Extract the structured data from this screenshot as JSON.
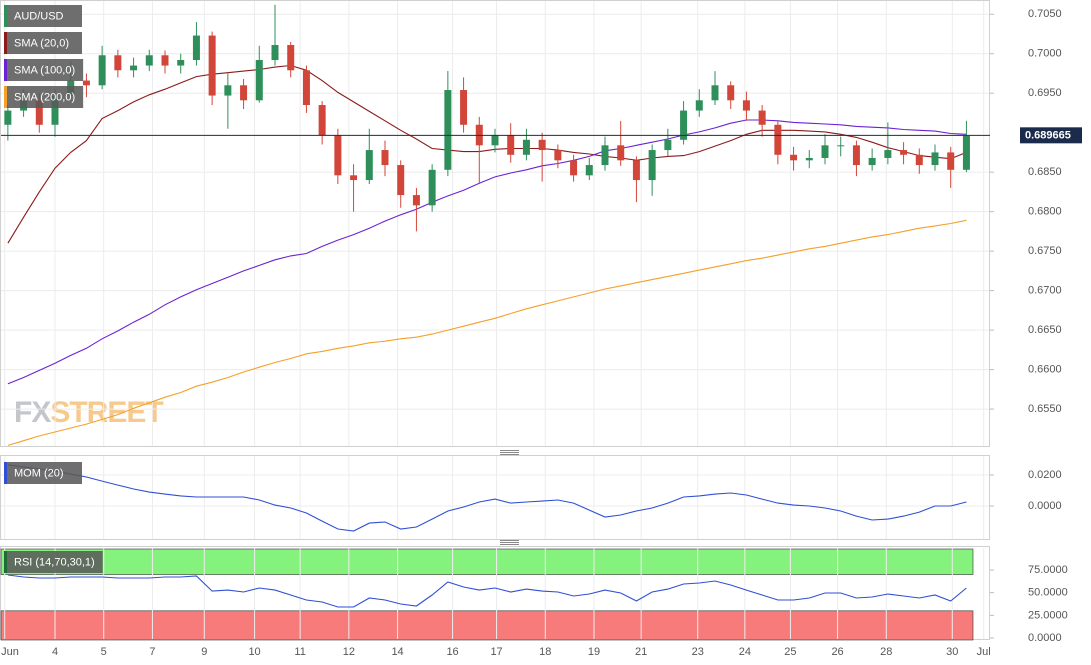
{
  "chart_data": [
    {
      "type": "candlestick",
      "name": "AUD/USD",
      "up_color": "#2f8f5b",
      "down_color": "#d2463a",
      "xlim": [
        -0.5,
        62.5
      ],
      "ylim": [
        0.6502,
        0.7068
      ],
      "yticks": [
        {
          "value": 0.705,
          "label": "0.7050"
        },
        {
          "value": 0.7,
          "label": "0.7000"
        },
        {
          "value": 0.695,
          "label": "0.6950"
        },
        {
          "value": 0.685,
          "label": "0.6850"
        },
        {
          "value": 0.68,
          "label": "0.6800"
        },
        {
          "value": 0.675,
          "label": "0.6750"
        },
        {
          "value": 0.67,
          "label": "0.6700"
        },
        {
          "value": 0.665,
          "label": "0.6650"
        },
        {
          "value": 0.66,
          "label": "0.6600"
        },
        {
          "value": 0.655,
          "label": "0.6550"
        }
      ],
      "last_price": 0.689665,
      "last_price_color": "#1b2b4b",
      "open": [
        0.691,
        0.6928,
        0.6941,
        0.691,
        0.6947,
        0.6966,
        0.696,
        0.6998,
        0.6979,
        0.6985,
        0.6998,
        0.6985,
        0.6992,
        0.7023,
        0.6947,
        0.696,
        0.6941,
        0.6992,
        0.7011,
        0.6979,
        0.6935,
        0.6897,
        0.6846,
        0.684,
        0.6878,
        0.6859,
        0.6821,
        0.6808,
        0.6853,
        0.6954,
        0.691,
        0.6884,
        0.6897,
        0.6872,
        0.6891,
        0.6878,
        0.6865,
        0.6846,
        0.6859,
        0.6884,
        0.6865,
        0.684,
        0.6878,
        0.6891,
        0.6928,
        0.6941,
        0.696,
        0.6941,
        0.6928,
        0.691,
        0.6872,
        0.6865,
        0.6868,
        0.6884,
        0.6884,
        0.6859,
        0.6868,
        0.6878,
        0.6872,
        0.6859,
        0.6875,
        0.6853
      ],
      "high": [
        0.6935,
        0.6955,
        0.695,
        0.6955,
        0.699,
        0.6975,
        0.701,
        0.7005,
        0.6995,
        0.7005,
        0.7004,
        0.7,
        0.704,
        0.7028,
        0.6975,
        0.6968,
        0.701,
        0.7062,
        0.7015,
        0.6985,
        0.694,
        0.6905,
        0.686,
        0.6905,
        0.689,
        0.6865,
        0.683,
        0.686,
        0.6978,
        0.697,
        0.692,
        0.6905,
        0.6912,
        0.6905,
        0.69,
        0.6885,
        0.6872,
        0.6868,
        0.6895,
        0.6915,
        0.687,
        0.6885,
        0.6905,
        0.694,
        0.6955,
        0.6978,
        0.6965,
        0.6952,
        0.6935,
        0.6915,
        0.6882,
        0.6878,
        0.6898,
        0.6895,
        0.689,
        0.688,
        0.6913,
        0.6888,
        0.688,
        0.6885,
        0.6882,
        0.6915
      ],
      "low": [
        0.689,
        0.692,
        0.69,
        0.6895,
        0.694,
        0.6945,
        0.6955,
        0.697,
        0.697,
        0.6978,
        0.6975,
        0.6975,
        0.6985,
        0.6935,
        0.6905,
        0.693,
        0.6938,
        0.6985,
        0.697,
        0.6925,
        0.6885,
        0.6835,
        0.68,
        0.6835,
        0.6845,
        0.6805,
        0.6775,
        0.68,
        0.6845,
        0.69,
        0.6835,
        0.6875,
        0.6862,
        0.6865,
        0.6838,
        0.6855,
        0.6838,
        0.684,
        0.6852,
        0.6858,
        0.6812,
        0.682,
        0.687,
        0.6885,
        0.692,
        0.6935,
        0.693,
        0.6915,
        0.6895,
        0.686,
        0.6852,
        0.6855,
        0.686,
        0.687,
        0.6845,
        0.6852,
        0.686,
        0.686,
        0.6848,
        0.6852,
        0.683,
        0.685
      ],
      "close": [
        0.6928,
        0.6941,
        0.691,
        0.6947,
        0.6966,
        0.696,
        0.6998,
        0.6979,
        0.6985,
        0.6998,
        0.6985,
        0.6992,
        0.7023,
        0.6947,
        0.696,
        0.6941,
        0.6992,
        0.7011,
        0.6979,
        0.6935,
        0.6897,
        0.6846,
        0.684,
        0.6878,
        0.6859,
        0.6821,
        0.6808,
        0.6853,
        0.6954,
        0.691,
        0.6884,
        0.6897,
        0.6872,
        0.6891,
        0.6878,
        0.6865,
        0.6846,
        0.6859,
        0.6884,
        0.6865,
        0.684,
        0.6878,
        0.6891,
        0.6928,
        0.6941,
        0.696,
        0.6941,
        0.6928,
        0.691,
        0.6872,
        0.6865,
        0.6868,
        0.6884,
        0.6884,
        0.6859,
        0.6868,
        0.6878,
        0.6872,
        0.6859,
        0.6875,
        0.6853,
        0.6896
      ],
      "series": [
        {
          "name": "SMA (20,0)",
          "color": "#8b1a1a",
          "values": [
            0.676,
            0.6793,
            0.6825,
            0.6855,
            0.6875,
            0.689,
            0.6918,
            0.6928,
            0.6939,
            0.6948,
            0.6955,
            0.6963,
            0.6971,
            0.6974,
            0.6976,
            0.6978,
            0.698,
            0.6983,
            0.6985,
            0.6979,
            0.6966,
            0.6951,
            0.6939,
            0.6927,
            0.6915,
            0.6903,
            0.6892,
            0.688,
            0.6878,
            0.6876,
            0.6876,
            0.6879,
            0.688,
            0.688,
            0.688,
            0.6878,
            0.6875,
            0.6873,
            0.687,
            0.6868,
            0.6865,
            0.6868,
            0.687,
            0.6871,
            0.6876,
            0.6883,
            0.689,
            0.6898,
            0.6903,
            0.6903,
            0.6903,
            0.6902,
            0.6901,
            0.6898,
            0.6894,
            0.6888,
            0.6881,
            0.6876,
            0.6871,
            0.6869,
            0.6867,
            0.6875
          ]
        },
        {
          "name": "SMA (100,0)",
          "color": "#6a22d4",
          "values": [
            0.6582,
            0.659,
            0.6599,
            0.6608,
            0.6618,
            0.6627,
            0.6639,
            0.6649,
            0.666,
            0.667,
            0.6682,
            0.6692,
            0.6701,
            0.6709,
            0.6717,
            0.6725,
            0.6732,
            0.6739,
            0.6744,
            0.6747,
            0.6756,
            0.6764,
            0.6771,
            0.6779,
            0.6788,
            0.6796,
            0.6803,
            0.6812,
            0.682,
            0.6827,
            0.6836,
            0.6844,
            0.6849,
            0.6853,
            0.6858,
            0.6861,
            0.6865,
            0.687,
            0.6877,
            0.688,
            0.6884,
            0.6888,
            0.6892,
            0.6897,
            0.6901,
            0.6906,
            0.6912,
            0.6916,
            0.6916,
            0.6915,
            0.6913,
            0.6912,
            0.6911,
            0.691,
            0.6908,
            0.6907,
            0.6906,
            0.6904,
            0.6903,
            0.6902,
            0.6899,
            0.6898
          ]
        },
        {
          "name": "SMA (200,0)",
          "color": "#f5a02a",
          "values": [
            0.6504,
            0.651,
            0.6516,
            0.6521,
            0.6526,
            0.6531,
            0.6537,
            0.6543,
            0.6551,
            0.6558,
            0.6565,
            0.6571,
            0.6579,
            0.6584,
            0.659,
            0.6597,
            0.6603,
            0.6609,
            0.6614,
            0.662,
            0.6623,
            0.6627,
            0.663,
            0.6634,
            0.6636,
            0.6639,
            0.6641,
            0.6645,
            0.665,
            0.6655,
            0.666,
            0.6665,
            0.6671,
            0.6677,
            0.6682,
            0.6687,
            0.6692,
            0.6697,
            0.6702,
            0.6706,
            0.671,
            0.6714,
            0.6718,
            0.6722,
            0.6726,
            0.673,
            0.6734,
            0.6738,
            0.6741,
            0.6745,
            0.6749,
            0.6753,
            0.6756,
            0.676,
            0.6764,
            0.6768,
            0.6771,
            0.6775,
            0.6779,
            0.6782,
            0.6785,
            0.6789
          ]
        }
      ]
    },
    {
      "type": "line",
      "xlim": [
        -0.5,
        62.5
      ],
      "ylim": [
        -0.0219,
        0.0329
      ],
      "yticks": [
        {
          "value": 0.02,
          "label": "0.0200"
        },
        {
          "value": 0,
          "label": "0.0000"
        }
      ],
      "series": [
        {
          "name": "MOM (20)",
          "color": "#2f4fd6",
          "values": [
            0.0265,
            0.0252,
            0.0239,
            0.0226,
            0.0206,
            0.0187,
            0.0161,
            0.0135,
            0.011,
            0.009,
            0.0077,
            0.0065,
            0.0058,
            0.0058,
            0.0058,
            0.0058,
            0.0039,
            0.0006,
            -0.0013,
            -0.0045,
            -0.0097,
            -0.0148,
            -0.0161,
            -0.011,
            -0.0103,
            -0.0148,
            -0.0135,
            -0.0084,
            -0.0032,
            -0.0006,
            0.0026,
            0.0045,
            0.0019,
            0.0026,
            0.0032,
            0.0039,
            0.0019,
            -0.0026,
            -0.0071,
            -0.0058,
            -0.0032,
            -0.0013,
            0.0019,
            0.0058,
            0.0065,
            0.0077,
            0.0084,
            0.0071,
            0.0045,
            0.0019,
            0.0006,
            0,
            -0.0013,
            -0.0032,
            -0.0065,
            -0.009,
            -0.0084,
            -0.0065,
            -0.0039,
            0,
            0,
            0.0026
          ]
        }
      ]
    },
    {
      "type": "line",
      "xlim": [
        -0.5,
        62.5
      ],
      "ylim": [
        -2.2,
        100.4
      ],
      "yticks": [
        {
          "value": 75,
          "label": "75.0000"
        },
        {
          "value": 50,
          "label": "50.0000"
        },
        {
          "value": 25,
          "label": "25.0000"
        },
        {
          "value": 0,
          "label": "0.0000"
        }
      ],
      "overbought": 70,
      "oversold": 30,
      "overbought_color": "#86f27e",
      "oversold_color": "#f77b7b",
      "series": [
        {
          "name": "RSI (14,70,30,1)",
          "color": "#2f4fd6",
          "values": [
            69.5,
            67.3,
            66.2,
            66.2,
            67.3,
            67.3,
            67.3,
            66.2,
            66.2,
            66.2,
            67.3,
            67.3,
            68.4,
            51.8,
            52.9,
            50.7,
            55.2,
            52.9,
            47.4,
            41.9,
            39.7,
            34.2,
            34.2,
            44.1,
            41.9,
            37.5,
            35.3,
            47.4,
            61.8,
            56.3,
            52.9,
            55.2,
            50.7,
            54.0,
            51.8,
            50.7,
            46.3,
            48.5,
            52.9,
            49.6,
            40.8,
            50.7,
            54.0,
            59.6,
            60.7,
            62.9,
            58.5,
            52.9,
            47.4,
            41.9,
            41.9,
            44.1,
            49.6,
            49.6,
            44.1,
            45.2,
            48.5,
            46.3,
            44.1,
            47.4,
            40.8,
            55.2
          ]
        }
      ],
      "xticks": [
        {
          "value": -0.2,
          "label": "Jun"
        },
        {
          "value": 3.0,
          "label": "4"
        },
        {
          "value": 6.1,
          "label": "5"
        },
        {
          "value": 9.2,
          "label": "7"
        },
        {
          "value": 12.5,
          "label": "9"
        },
        {
          "value": 15.7,
          "label": "10"
        },
        {
          "value": 18.6,
          "label": "11"
        },
        {
          "value": 21.7,
          "label": "12"
        },
        {
          "value": 24.8,
          "label": "14"
        },
        {
          "value": 28.3,
          "label": "16"
        },
        {
          "value": 31.1,
          "label": "17"
        },
        {
          "value": 34.2,
          "label": "18"
        },
        {
          "value": 37.3,
          "label": "19"
        },
        {
          "value": 40.3,
          "label": "21"
        },
        {
          "value": 43.9,
          "label": "23"
        },
        {
          "value": 46.9,
          "label": "24"
        },
        {
          "value": 49.8,
          "label": "25"
        },
        {
          "value": 52.8,
          "label": "26"
        },
        {
          "value": 55.9,
          "label": "28"
        },
        {
          "value": 60.1,
          "label": "30"
        },
        {
          "value": 62.1,
          "label": "Jul"
        }
      ]
    }
  ],
  "watermark": [
    "FX",
    "STREET"
  ]
}
